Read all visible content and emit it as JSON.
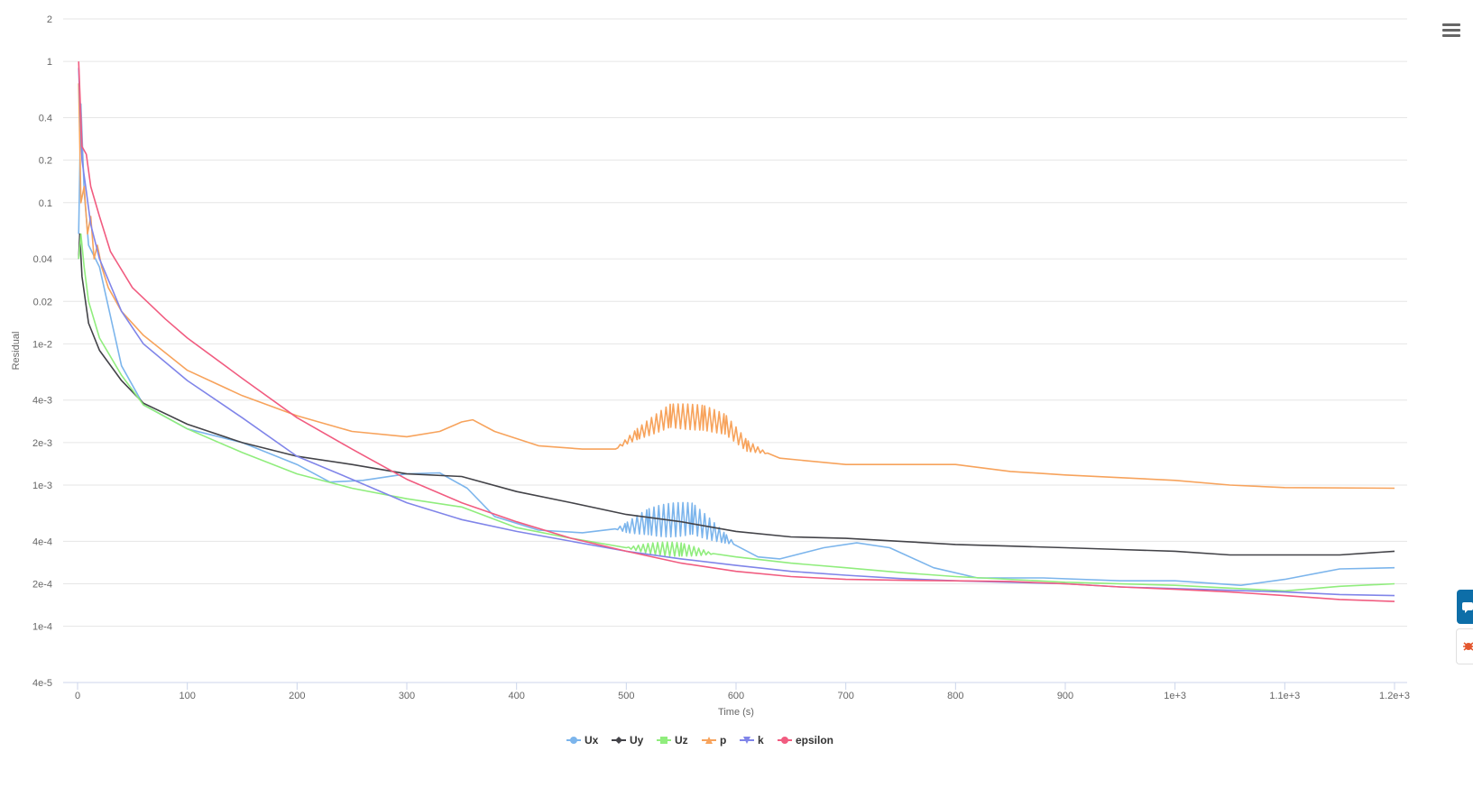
{
  "chart_data": {
    "type": "line",
    "title": "",
    "xlabel": "Time (s)",
    "ylabel": "Residual",
    "xlim": [
      0,
      1200
    ],
    "ylim": [
      4e-05,
      2
    ],
    "yscale": "log",
    "grid": "horizontal",
    "legend_position": "bottom-center",
    "x_ticks": [
      0,
      100,
      200,
      300,
      400,
      500,
      600,
      700,
      800,
      900,
      1000,
      1100,
      1200
    ],
    "x_tick_labels": [
      "0",
      "100",
      "200",
      "300",
      "400",
      "500",
      "600",
      "700",
      "800",
      "900",
      "1e+3",
      "1.1e+3",
      "1.2e+3"
    ],
    "y_ticks": [
      2,
      1,
      0.4,
      0.2,
      0.1,
      0.04,
      0.02,
      0.01,
      0.004,
      0.002,
      0.001,
      0.0004,
      0.0002,
      0.0001,
      4e-05
    ],
    "y_tick_labels": [
      "2",
      "1",
      "0.4",
      "0.2",
      "0.1",
      "0.04",
      "0.02",
      "1e-2",
      "4e-3",
      "2e-3",
      "1e-3",
      "4e-4",
      "2e-4",
      "1e-4",
      "4e-5"
    ],
    "series": [
      {
        "name": "Ux",
        "color": "#7cb5ec",
        "marker": "circle",
        "points": [
          [
            1,
            0.06
          ],
          [
            3,
            0.5
          ],
          [
            6,
            0.12
          ],
          [
            10,
            0.05
          ],
          [
            20,
            0.035
          ],
          [
            40,
            0.007
          ],
          [
            60,
            0.0037
          ],
          [
            100,
            0.0025
          ],
          [
            150,
            0.002
          ],
          [
            200,
            0.0014
          ],
          [
            230,
            0.00105
          ],
          [
            260,
            0.00108
          ],
          [
            300,
            0.0012
          ],
          [
            330,
            0.00122
          ],
          [
            355,
            0.00095
          ],
          [
            380,
            0.0006
          ],
          [
            420,
            0.00048
          ],
          [
            460,
            0.00046
          ],
          [
            500,
            0.0005
          ],
          [
            520,
            0.00055
          ],
          [
            560,
            0.00058
          ],
          [
            590,
            0.00042
          ],
          [
            620,
            0.00031
          ],
          [
            640,
            0.0003
          ],
          [
            680,
            0.00036
          ],
          [
            710,
            0.00039
          ],
          [
            740,
            0.00036
          ],
          [
            780,
            0.00026
          ],
          [
            820,
            0.00022
          ],
          [
            880,
            0.00022
          ],
          [
            950,
            0.00021
          ],
          [
            1000,
            0.00021
          ],
          [
            1060,
            0.000195
          ],
          [
            1100,
            0.000215
          ],
          [
            1150,
            0.000255
          ],
          [
            1200,
            0.00026
          ]
        ],
        "oscillation": {
          "x_range": [
            490,
            600
          ],
          "amplitude": 0.12
        }
      },
      {
        "name": "Uy",
        "color": "#434348",
        "marker": "diamond",
        "points": [
          [
            1,
            0.04
          ],
          [
            2,
            0.06
          ],
          [
            4,
            0.03
          ],
          [
            10,
            0.014
          ],
          [
            20,
            0.009
          ],
          [
            40,
            0.0055
          ],
          [
            60,
            0.0038
          ],
          [
            100,
            0.0027
          ],
          [
            150,
            0.002
          ],
          [
            200,
            0.0016
          ],
          [
            250,
            0.0014
          ],
          [
            300,
            0.0012
          ],
          [
            350,
            0.00115
          ],
          [
            400,
            0.0009
          ],
          [
            450,
            0.00075
          ],
          [
            500,
            0.00062
          ],
          [
            550,
            0.00055
          ],
          [
            600,
            0.00047
          ],
          [
            650,
            0.00043
          ],
          [
            700,
            0.00042
          ],
          [
            750,
            0.0004
          ],
          [
            800,
            0.00038
          ],
          [
            850,
            0.00037
          ],
          [
            900,
            0.00036
          ],
          [
            950,
            0.00035
          ],
          [
            1000,
            0.00034
          ],
          [
            1050,
            0.00032
          ],
          [
            1100,
            0.00032
          ],
          [
            1150,
            0.00032
          ],
          [
            1200,
            0.00034
          ]
        ]
      },
      {
        "name": "Uz",
        "color": "#90ed7d",
        "marker": "square",
        "points": [
          [
            1,
            0.04
          ],
          [
            3,
            0.06
          ],
          [
            6,
            0.035
          ],
          [
            10,
            0.02
          ],
          [
            20,
            0.011
          ],
          [
            40,
            0.006
          ],
          [
            60,
            0.0037
          ],
          [
            100,
            0.0025
          ],
          [
            150,
            0.0017
          ],
          [
            200,
            0.0012
          ],
          [
            250,
            0.00095
          ],
          [
            300,
            0.0008
          ],
          [
            350,
            0.0007
          ],
          [
            400,
            0.0005
          ],
          [
            450,
            0.00042
          ],
          [
            500,
            0.00036
          ],
          [
            550,
            0.00035
          ],
          [
            600,
            0.00031
          ],
          [
            650,
            0.00028
          ],
          [
            700,
            0.00026
          ],
          [
            750,
            0.00024
          ],
          [
            800,
            0.000225
          ],
          [
            900,
            0.000205
          ],
          [
            1000,
            0.000195
          ],
          [
            1100,
            0.000178
          ],
          [
            1150,
            0.000192
          ],
          [
            1200,
            0.0002
          ]
        ],
        "oscillation": {
          "x_range": [
            500,
            580
          ],
          "amplitude": 0.05
        }
      },
      {
        "name": "p",
        "color": "#f7a35c",
        "marker": "triangle",
        "points": [
          [
            1,
            0.7
          ],
          [
            3,
            0.1
          ],
          [
            6,
            0.13
          ],
          [
            9,
            0.06
          ],
          [
            12,
            0.08
          ],
          [
            15,
            0.04
          ],
          [
            18,
            0.05
          ],
          [
            22,
            0.035
          ],
          [
            28,
            0.025
          ],
          [
            40,
            0.017
          ],
          [
            60,
            0.0115
          ],
          [
            100,
            0.0065
          ],
          [
            150,
            0.0043
          ],
          [
            200,
            0.0031
          ],
          [
            250,
            0.0024
          ],
          [
            300,
            0.0022
          ],
          [
            330,
            0.0024
          ],
          [
            350,
            0.0028
          ],
          [
            360,
            0.0029
          ],
          [
            380,
            0.0024
          ],
          [
            420,
            0.0019
          ],
          [
            460,
            0.0018
          ],
          [
            490,
            0.0018
          ],
          [
            510,
            0.0023
          ],
          [
            540,
            0.0031
          ],
          [
            570,
            0.003
          ],
          [
            590,
            0.0027
          ],
          [
            610,
            0.0019
          ],
          [
            640,
            0.00155
          ],
          [
            700,
            0.0014
          ],
          [
            760,
            0.0014
          ],
          [
            800,
            0.0014
          ],
          [
            850,
            0.00125
          ],
          [
            900,
            0.00118
          ],
          [
            1000,
            0.00108
          ],
          [
            1050,
            0.001
          ],
          [
            1100,
            0.00096
          ],
          [
            1200,
            0.00095
          ]
        ],
        "oscillation": {
          "x_range": [
            490,
            630
          ],
          "amplitude": 0.09
        }
      },
      {
        "name": "k",
        "color": "#8085e9",
        "marker": "triangle-down",
        "points": [
          [
            1,
            0.9
          ],
          [
            4,
            0.2
          ],
          [
            8,
            0.12
          ],
          [
            12,
            0.07
          ],
          [
            20,
            0.04
          ],
          [
            40,
            0.017
          ],
          [
            60,
            0.01
          ],
          [
            100,
            0.0055
          ],
          [
            150,
            0.003
          ],
          [
            200,
            0.0016
          ],
          [
            250,
            0.0011
          ],
          [
            300,
            0.00075
          ],
          [
            350,
            0.00057
          ],
          [
            400,
            0.00047
          ],
          [
            450,
            0.0004
          ],
          [
            500,
            0.00034
          ],
          [
            550,
            0.0003
          ],
          [
            600,
            0.00027
          ],
          [
            650,
            0.000245
          ],
          [
            700,
            0.00023
          ],
          [
            750,
            0.000218
          ],
          [
            800,
            0.00021
          ],
          [
            850,
            0.000205
          ],
          [
            900,
            0.0002
          ],
          [
            950,
            0.00019
          ],
          [
            1000,
            0.000185
          ],
          [
            1050,
            0.00018
          ],
          [
            1100,
            0.000175
          ],
          [
            1150,
            0.000168
          ],
          [
            1200,
            0.000165
          ]
        ]
      },
      {
        "name": "epsilon",
        "color": "#f15c80",
        "marker": "circle",
        "points": [
          [
            1,
            1
          ],
          [
            4,
            0.25
          ],
          [
            8,
            0.22
          ],
          [
            12,
            0.13
          ],
          [
            20,
            0.08
          ],
          [
            30,
            0.045
          ],
          [
            50,
            0.025
          ],
          [
            80,
            0.015
          ],
          [
            100,
            0.011
          ],
          [
            150,
            0.0057
          ],
          [
            200,
            0.003
          ],
          [
            250,
            0.0018
          ],
          [
            300,
            0.0011
          ],
          [
            350,
            0.00075
          ],
          [
            400,
            0.00055
          ],
          [
            450,
            0.00042
          ],
          [
            500,
            0.00034
          ],
          [
            550,
            0.00028
          ],
          [
            600,
            0.000245
          ],
          [
            650,
            0.000225
          ],
          [
            700,
            0.000215
          ],
          [
            750,
            0.000212
          ],
          [
            800,
            0.00021
          ],
          [
            850,
            0.000208
          ],
          [
            900,
            0.0002
          ],
          [
            950,
            0.00019
          ],
          [
            1000,
            0.000183
          ],
          [
            1050,
            0.000175
          ],
          [
            1100,
            0.000165
          ],
          [
            1150,
            0.000155
          ],
          [
            1200,
            0.00015
          ]
        ]
      }
    ]
  },
  "ui": {
    "menu_icon": "hamburger-menu-icon",
    "side_tabs": [
      {
        "name": "chat-tab",
        "icon": "chat-icon",
        "color": "#0d6ea8"
      },
      {
        "name": "bug-report-tab",
        "icon": "bug-icon",
        "color": "#e4572e"
      }
    ]
  }
}
